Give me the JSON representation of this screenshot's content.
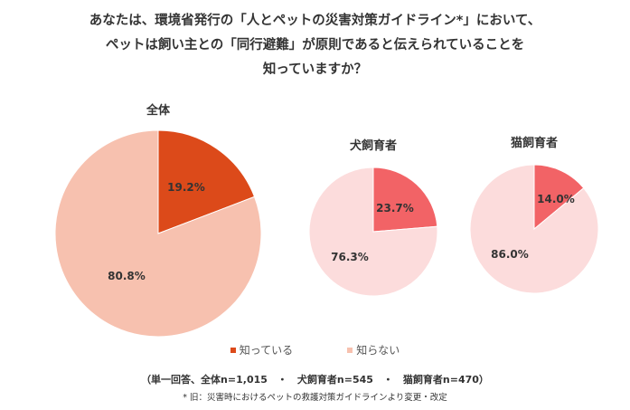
{
  "title": {
    "line1": "あなたは、環境省発行の「人とペットの災害対策ガイドライン*」において、",
    "line2": "ペットは飼い主との「同行避難」が原則であると伝えられていることを",
    "line3": "知っていますか？"
  },
  "chart_data": [
    {
      "type": "pie",
      "title": "全体",
      "categories": [
        "知っている",
        "知らない"
      ],
      "values": [
        19.2,
        80.8
      ],
      "labels": [
        "19.2%",
        "80.8%"
      ],
      "colors": [
        "#dc4a1a",
        "#f7c1af"
      ]
    },
    {
      "type": "pie",
      "title": "犬飼育者",
      "categories": [
        "知っている",
        "知らない"
      ],
      "values": [
        23.7,
        76.3
      ],
      "labels": [
        "23.7%",
        "76.3%"
      ],
      "colors": [
        "#f26366",
        "#fcdcdc"
      ]
    },
    {
      "type": "pie",
      "title": "猫飼育者",
      "categories": [
        "知っている",
        "知らない"
      ],
      "values": [
        14.0,
        86.0
      ],
      "labels": [
        "14.0%",
        "86.0%"
      ],
      "colors": [
        "#f26366",
        "#fcdcdc"
      ]
    }
  ],
  "legend": {
    "items": [
      {
        "label": "知っている",
        "color": "#dc4a1a"
      },
      {
        "label": "知らない",
        "color": "#f7c1af"
      }
    ]
  },
  "footnote": "（単一回答、全体n=1,015　・　犬飼育者n=545　・　猫飼育者n=470）",
  "note": "* 旧：災害時におけるペットの救護対策ガイドラインより変更・改定"
}
